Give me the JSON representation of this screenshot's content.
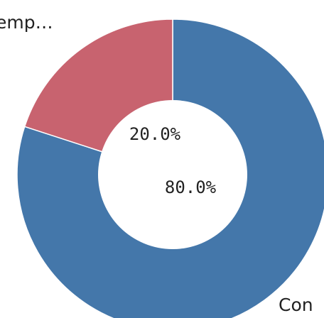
{
  "chart_data": {
    "type": "pie",
    "donut": true,
    "start_angle_deg": 0,
    "direction": "counterclockwise-from-top",
    "slices": [
      {
        "label": "Con",
        "value": 80.0,
        "percent_label": "80.0%",
        "color": "#4477aa"
      },
      {
        "label": "emp…",
        "value": 20.0,
        "percent_label": "20.0%",
        "color": "#c8636f"
      }
    ],
    "legend": "none"
  }
}
